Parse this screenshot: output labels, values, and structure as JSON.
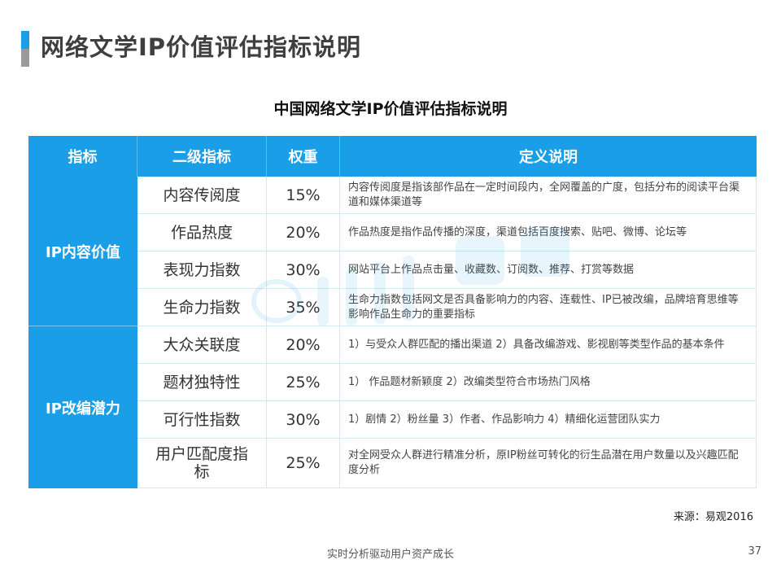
{
  "page": {
    "title": "网络文学IP价值评估指标说明",
    "table_title": "中国网络文学IP价值评估指标说明",
    "source": "来源：易观2016",
    "footer": "实时分析驱动用户资产成长",
    "page_number": "37"
  },
  "colors": {
    "accent": "#1a9ee8",
    "grey_bar": "#9a9a9a"
  },
  "table": {
    "headers": [
      "指标",
      "二级指标",
      "权重",
      "定义说明"
    ],
    "groups": [
      {
        "category": "IP内容价值",
        "rows": [
          {
            "name": "内容传阅度",
            "weight": "15%",
            "definition": "内容传阅度是指该部作品在一定时间段内，全网覆盖的广度，包括分布的阅读平台渠道和媒体渠道等"
          },
          {
            "name": "作品热度",
            "weight": "20%",
            "definition": "作品热度是指作品传播的深度，渠道包括百度搜索、贴吧、微博、论坛等"
          },
          {
            "name": "表现力指数",
            "weight": "30%",
            "definition": "网站平台上作品点击量、收藏数、订阅数、推荐、打赏等数据"
          },
          {
            "name": "生命力指数",
            "weight": "35%",
            "definition": "生命力指数包括网文是否具备影响力的内容、连载性、IP已被改编，品牌培育思维等影响作品生命力的重要指标"
          }
        ]
      },
      {
        "category": "IP改编潜力",
        "rows": [
          {
            "name": "大众关联度",
            "weight": "20%",
            "definition": "1）与受众人群匹配的播出渠道 2）具备改编游戏、影视剧等类型作品的基本条件"
          },
          {
            "name": "题材独特性",
            "weight": "25%",
            "definition": "1） 作品题材新颖度    2）改编类型符合市场热门风格"
          },
          {
            "name": "可行性指数",
            "weight": "30%",
            "definition": "1）剧情 2）粉丝量  3）作者、作品影响力 4）精细化运营团队实力"
          },
          {
            "name": "用户匹配度指标",
            "weight": "25%",
            "definition": "对全网受众人群进行精准分析，原IP粉丝可转化的衍生品潜在用户数量以及兴趣匹配度分析"
          }
        ]
      }
    ]
  }
}
